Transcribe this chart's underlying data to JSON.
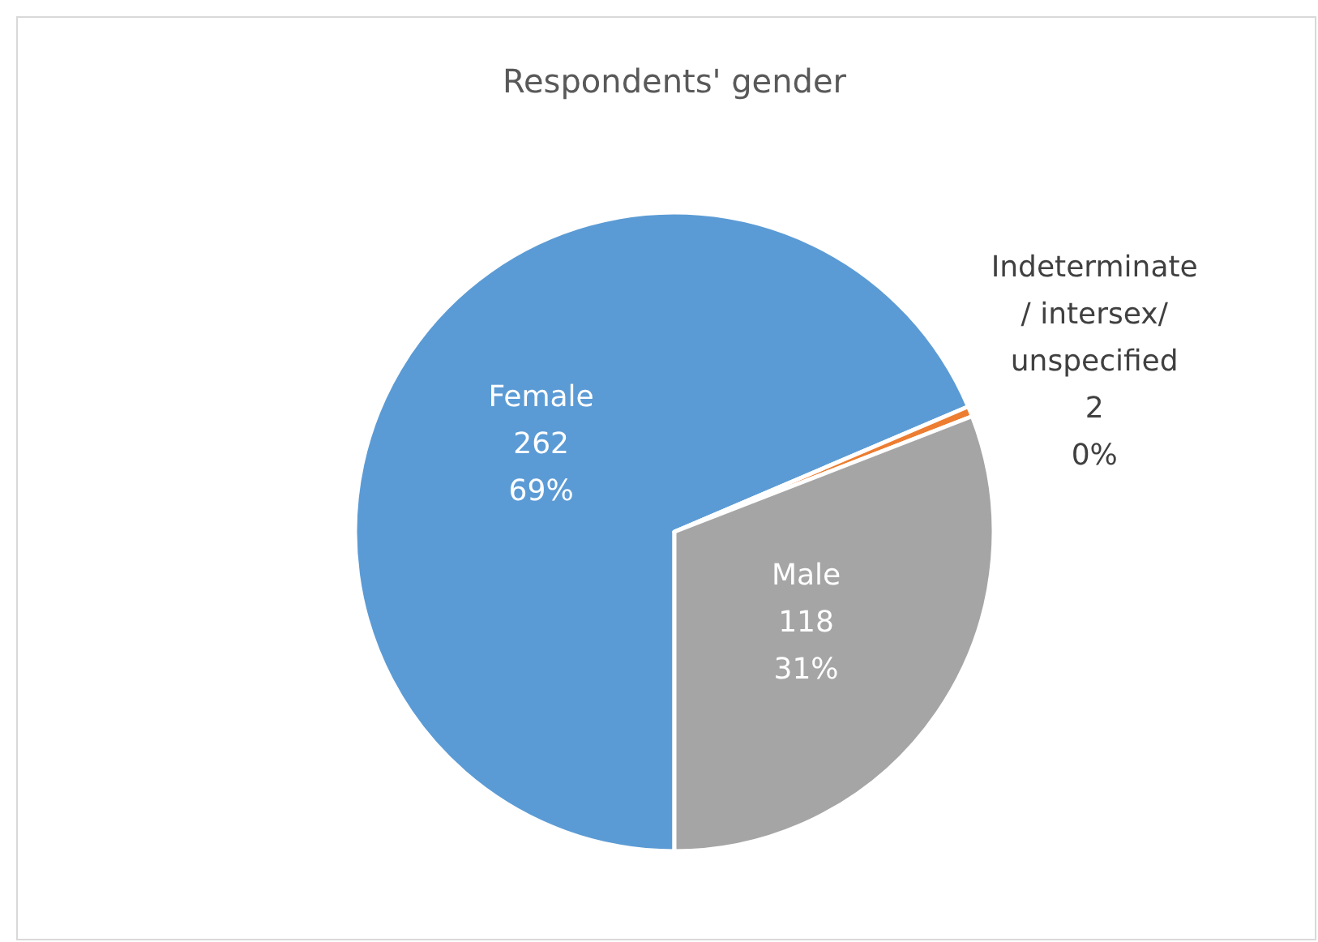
{
  "chart_data": {
    "type": "pie",
    "title": "Respondents' gender",
    "categories": [
      "Female",
      "Indeterminate / intersex/ unspecified",
      "Male"
    ],
    "values": [
      262,
      2,
      118
    ],
    "colors": [
      "#5b9bd5",
      "#ed7d31",
      "#a5a5a5"
    ],
    "value_labels": [
      "262\n69%",
      "2\n0%",
      "118\n31%"
    ]
  }
}
